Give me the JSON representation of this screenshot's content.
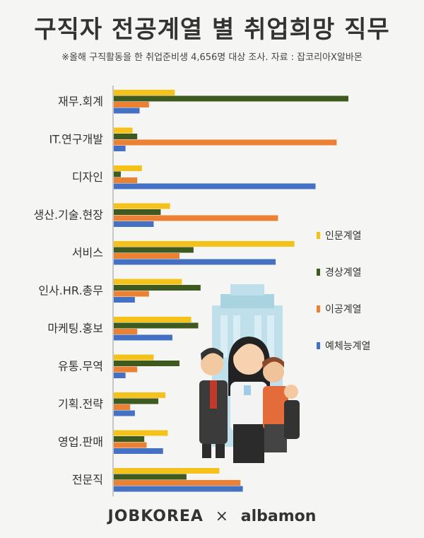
{
  "header": {
    "title": "구직자 전공계열 별 취업희망 직무",
    "subtitle": "※올해 구직활동을 한 취업준비생 4,656명 대상 조사. 자료 : 잡코리아X알바몬"
  },
  "footer": {
    "brand1": "JOBKOREA",
    "separator": "×",
    "brand2": "albamon"
  },
  "colors": {
    "background": "#f5f5f3",
    "inmun": "#f5c21b",
    "sangyeong": "#3f5a1e",
    "igong": "#ea8133",
    "yechaeneung": "#4471c4"
  },
  "illustration": "office-workers-illustration",
  "chart_data": {
    "type": "bar",
    "orientation": "horizontal",
    "categories": [
      "재무.회계",
      "IT.연구개발",
      "디자인",
      "생산.기술.현장",
      "서비스",
      "인사.HR.총무",
      "마케팅.홍보",
      "유통.무역",
      "기획.전략",
      "영업.판매",
      "전문직"
    ],
    "series": [
      {
        "name": "인문계열",
        "color": "#f5c21b",
        "values": [
          26,
          8,
          12,
          24,
          77,
          29,
          33,
          17,
          22,
          23,
          45
        ]
      },
      {
        "name": "경상계열",
        "color": "#3f5a1e",
        "values": [
          100,
          10,
          3,
          20,
          34,
          37,
          36,
          28,
          19,
          13,
          31
        ]
      },
      {
        "name": "이공계열",
        "color": "#ea8133",
        "values": [
          15,
          95,
          10,
          70,
          28,
          15,
          10,
          10,
          7,
          14,
          54
        ]
      },
      {
        "name": "예체능계열",
        "color": "#4471c4",
        "values": [
          11,
          5,
          86,
          17,
          69,
          9,
          25,
          5,
          9,
          21,
          55
        ]
      }
    ],
    "xlim": [
      0,
      100
    ],
    "legend_position": "right"
  }
}
